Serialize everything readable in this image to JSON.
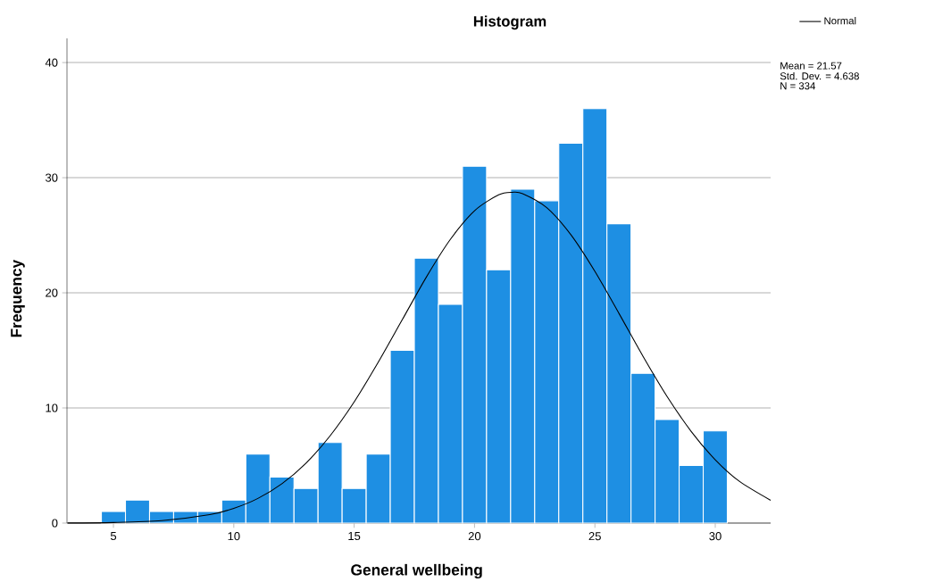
{
  "chart_data": {
    "type": "histogram",
    "title": "Histogram",
    "xlabel": "General wellbeing",
    "ylabel": "Frequency",
    "bins": [
      4.5,
      5.5,
      6.5,
      7.5,
      8.5,
      9.5,
      10.5,
      11.5,
      12.5,
      13.5,
      14.5,
      15.5,
      16.5,
      17.5,
      18.5,
      19.5,
      20.5,
      21.5,
      22.5,
      23.5,
      24.5,
      25.5,
      26.5,
      27.5,
      28.5,
      29.5,
      30.5
    ],
    "values": [
      1,
      2,
      1,
      1,
      1,
      2,
      6,
      4,
      3,
      7,
      3,
      6,
      15,
      23,
      19,
      31,
      22,
      29,
      28,
      33,
      36,
      26,
      13,
      9,
      5,
      8
    ],
    "color": "#1e8fe3",
    "series": [
      {
        "name": "Normal",
        "type": "line",
        "color": "#000000",
        "marker": "none",
        "line_style": "solid",
        "x": [
          3.1,
          5,
          7,
          9,
          10,
          11,
          12,
          13,
          14,
          15,
          16,
          17,
          18,
          19,
          20,
          21,
          21.57,
          22,
          23,
          24,
          25,
          26,
          27,
          28,
          29,
          30,
          31,
          32.3
        ],
        "values": [
          0.01,
          0.05,
          0.21,
          0.73,
          1.28,
          2.14,
          3.42,
          5.21,
          7.58,
          10.52,
          13.97,
          17.67,
          21.37,
          24.65,
          27.13,
          28.51,
          28.73,
          28.61,
          27.4,
          25.05,
          21.86,
          18.21,
          14.48,
          10.99,
          7.96,
          5.5,
          3.63,
          1.98
        ]
      }
    ],
    "annotations": [
      "Mean = 21.57",
      "Std. Dev. = 4.638",
      "N = 334"
    ],
    "xlim": [
      3.07,
      32.3
    ],
    "ylim": [
      0,
      42.1
    ],
    "xticks": [
      5,
      10,
      15,
      20,
      25,
      30
    ],
    "yticks": [
      0,
      10,
      20,
      30,
      40
    ],
    "grid": "y",
    "legend": "top right"
  }
}
